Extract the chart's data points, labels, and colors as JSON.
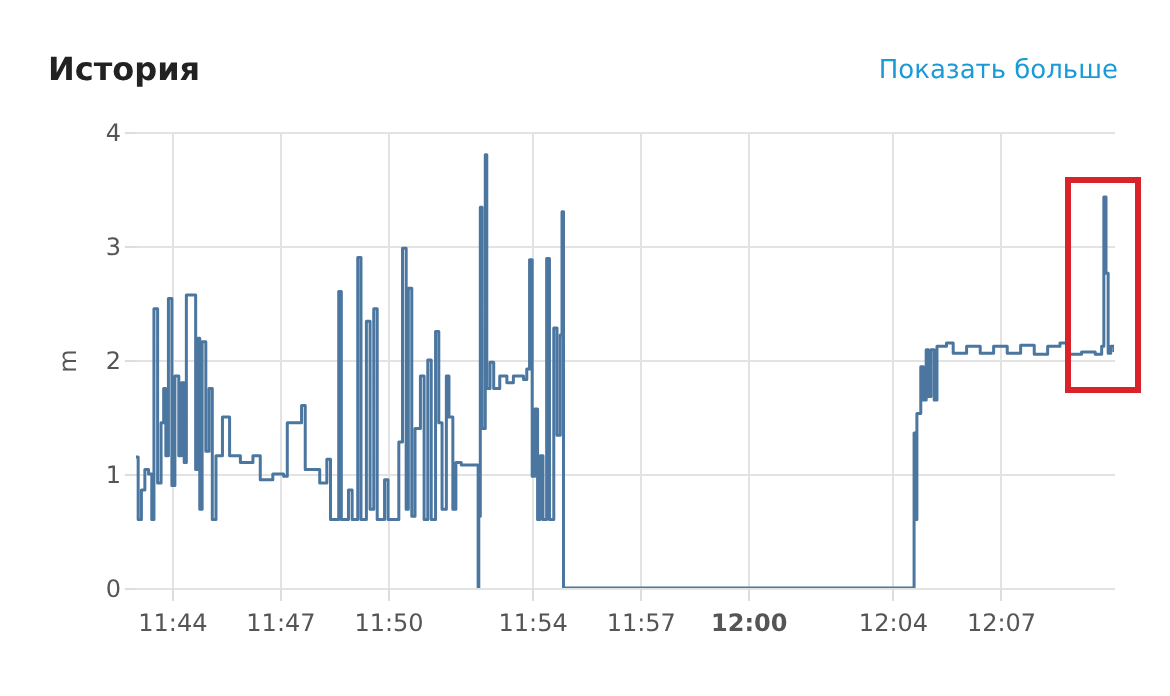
{
  "chart_data": {
    "type": "step",
    "title": "История",
    "ylabel": "m",
    "annotations": [
      "Показать больше"
    ],
    "x": [
      11.7167,
      11.7177,
      11.7192,
      11.7208,
      11.7225,
      11.724,
      11.725,
      11.7267,
      11.7283,
      11.7295,
      11.7305,
      11.7317,
      11.7333,
      11.7347,
      11.7365,
      11.7377,
      11.739,
      11.74,
      11.7433,
      11.7443,
      11.7452,
      11.7462,
      11.7473,
      11.749,
      11.7505,
      11.752,
      11.7537,
      11.7567,
      11.76,
      11.765,
      11.7708,
      11.7742,
      11.78,
      11.785,
      11.7867,
      11.7917,
      11.7933,
      11.795,
      11.799,
      11.8017,
      11.805,
      11.8067,
      11.81,
      11.8105,
      11.8117,
      11.815,
      11.8167,
      11.8193,
      11.8208,
      11.8233,
      11.825,
      11.8267,
      11.8283,
      11.8317,
      11.8333,
      11.8367,
      11.8383,
      11.84,
      11.8417,
      11.8427,
      11.8443,
      11.8458,
      11.8483,
      11.85,
      11.8517,
      11.8533,
      11.8553,
      11.8568,
      11.8583,
      11.8603,
      11.8615,
      11.8633,
      11.8647,
      11.8672,
      11.8747,
      11.875,
      11.8753,
      11.876,
      11.8768,
      11.8783,
      11.879,
      11.8805,
      11.8822,
      11.885,
      11.8883,
      11.8913,
      11.896,
      11.8975,
      11.8988,
      11.9,
      11.9012,
      11.9025,
      11.9037,
      11.905,
      11.9067,
      11.908,
      11.91,
      11.9115,
      11.913,
      11.9138,
      11.9145,
      12.076,
      12.0767,
      12.0773,
      12.078,
      12.0798,
      12.081,
      12.0823,
      12.0833,
      12.0845,
      12.086,
      12.0873,
      12.0917,
      12.0948,
      12.101,
      12.1073,
      12.1135,
      12.1198,
      12.126,
      12.1323,
      12.1385,
      12.1442,
      12.148,
      12.1542,
      12.1605,
      12.1635,
      12.1645,
      12.1655,
      12.1665,
      12.1677,
      12.1692
    ],
    "series": [
      {
        "color": "#4a76a0",
        "values": [
          1.15,
          0.6,
          0.86,
          1.04,
          1.0,
          0.6,
          2.45,
          0.92,
          1.45,
          1.75,
          1.16,
          2.54,
          0.9,
          1.86,
          1.16,
          1.8,
          1.1,
          2.57,
          2.57,
          1.04,
          2.19,
          0.69,
          2.16,
          1.2,
          1.75,
          0.6,
          1.16,
          1.5,
          1.16,
          1.1,
          1.16,
          0.95,
          1.0,
          0.98,
          1.45,
          1.45,
          1.6,
          1.04,
          1.04,
          0.92,
          1.13,
          0.6,
          0.6,
          2.6,
          0.6,
          0.86,
          0.6,
          2.9,
          0.6,
          2.34,
          0.69,
          2.45,
          0.6,
          0.95,
          0.6,
          0.6,
          1.28,
          2.98,
          0.69,
          2.63,
          0.63,
          1.4,
          1.86,
          0.6,
          2.0,
          0.6,
          2.25,
          1.45,
          0.69,
          1.86,
          1.5,
          0.69,
          1.1,
          1.08,
          1.08,
          0,
          0.63,
          3.34,
          1.4,
          3.8,
          1.75,
          1.98,
          1.75,
          1.86,
          1.8,
          1.86,
          1.83,
          1.92,
          2.88,
          0.98,
          1.57,
          0.6,
          1.16,
          0.6,
          2.89,
          0.6,
          2.28,
          1.34,
          2.22,
          3.3,
          0,
          0,
          1.36,
          0.6,
          1.53,
          1.94,
          1.65,
          2.09,
          1.68,
          2.09,
          1.65,
          2.12,
          2.15,
          2.06,
          2.12,
          2.06,
          2.12,
          2.06,
          2.13,
          2.05,
          2.12,
          2.15,
          2.05,
          2.07,
          2.05,
          2.12,
          3.43,
          2.76,
          2.06,
          2.12,
          2.07
        ]
      }
    ],
    "xlim": [
      11.7167,
      12.1692
    ],
    "xticks": [
      {
        "value": 11.7333,
        "label": "11:44"
      },
      {
        "value": 11.7833,
        "label": "11:47"
      },
      {
        "value": 11.8333,
        "label": "11:50"
      },
      {
        "value": 11.9,
        "label": "11:54"
      },
      {
        "value": 11.95,
        "label": "11:57"
      },
      {
        "value": 12.0,
        "label": "12:00"
      },
      {
        "value": 12.0667,
        "label": "12:04"
      },
      {
        "value": 12.1167,
        "label": "12:07"
      }
    ],
    "ylim": [
      0,
      4
    ],
    "yticks": [
      0,
      1,
      2,
      3,
      4
    ],
    "grid": true
  }
}
